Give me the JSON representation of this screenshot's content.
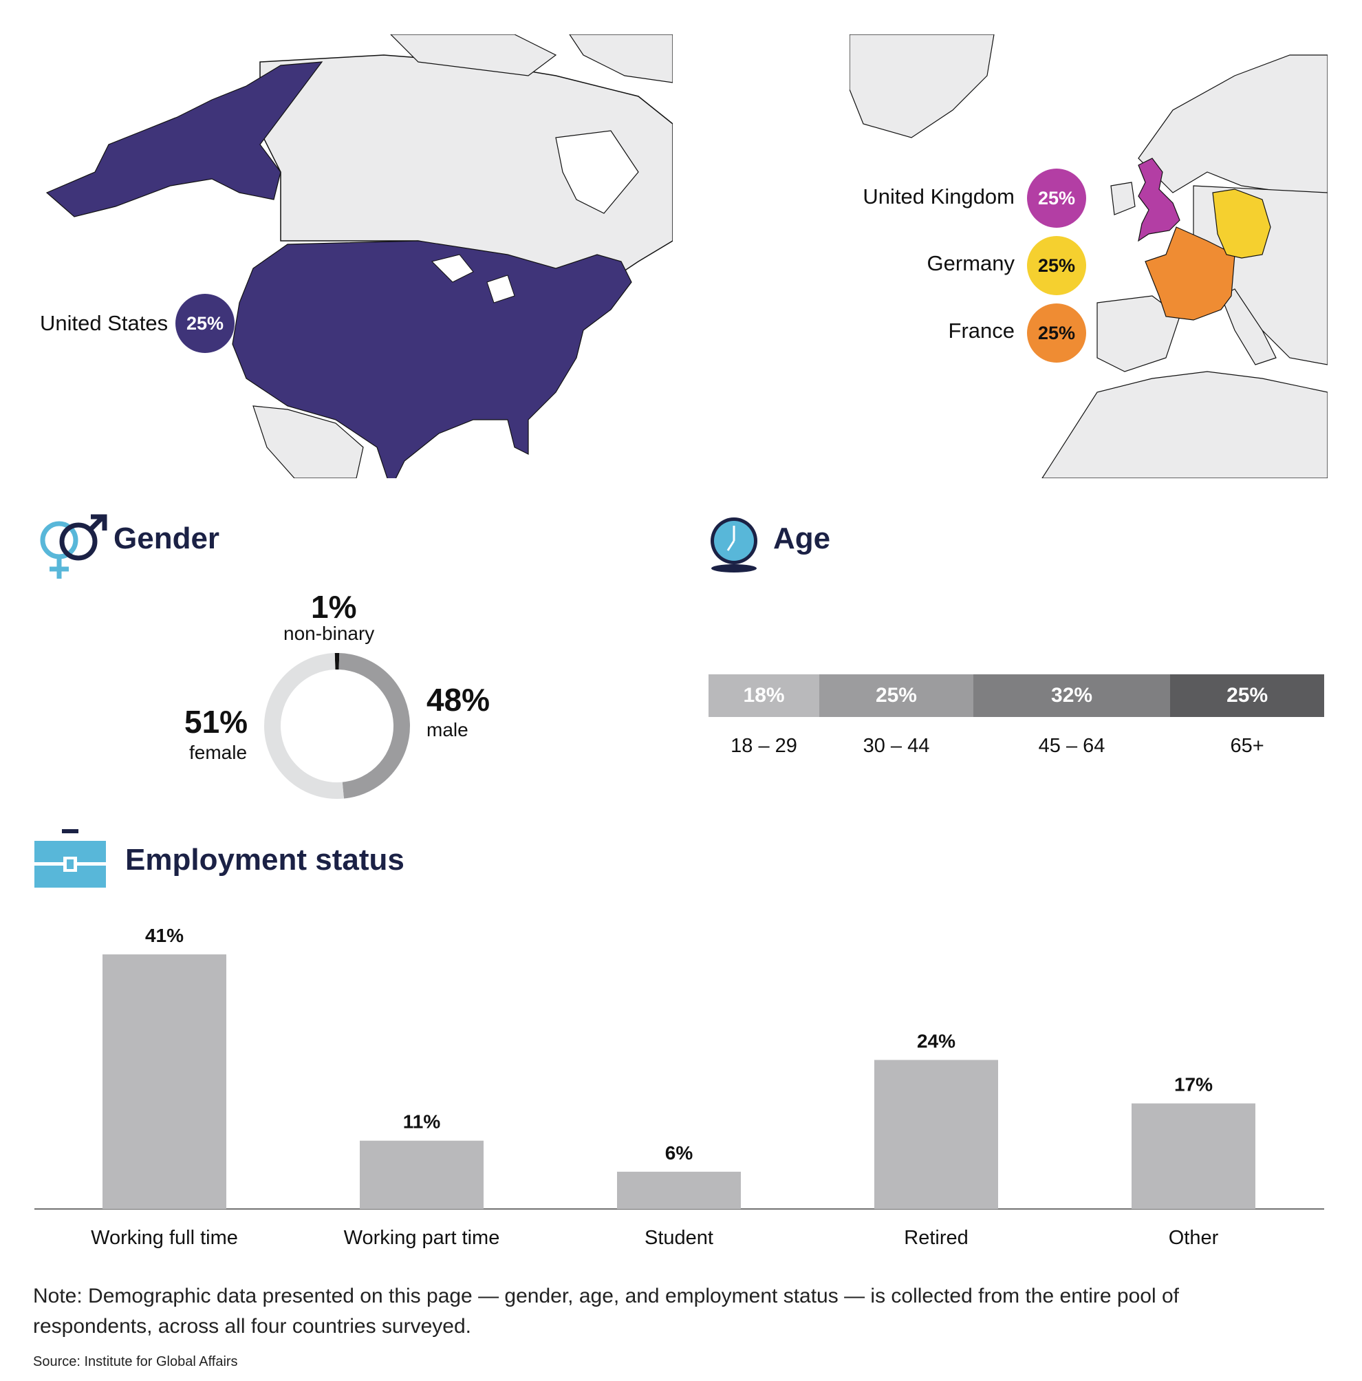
{
  "map": {
    "north_america": {
      "label": "United States",
      "pct": "25%",
      "color": "#3f3479"
    },
    "europe": [
      {
        "label": "United Kingdom",
        "pct": "25%",
        "color": "#b33ea4",
        "text_color": "#ffffff"
      },
      {
        "label": "Germany",
        "pct": "25%",
        "color": "#f5d02f",
        "text_color": "#111111"
      },
      {
        "label": "France",
        "pct": "25%",
        "color": "#ef8c33",
        "text_color": "#111111"
      }
    ],
    "land_color": "#ebebec"
  },
  "gender": {
    "title": "Gender",
    "icon": "gender-icon",
    "nonbinary": {
      "pct": "1%",
      "label": "non-binary"
    },
    "male": {
      "pct": "48%",
      "label": "male"
    },
    "female": {
      "pct": "51%",
      "label": "female"
    },
    "colors": {
      "male": "#9c9c9e",
      "female": "#e0e1e2",
      "nonbinary": "#111111"
    }
  },
  "age": {
    "title": "Age",
    "icon": "clock-icon"
  },
  "employment": {
    "title": "Employment status",
    "icon": "briefcase-icon"
  },
  "note": "Note: Demographic data presented on this page — gender, age, and employment status — is collected from the entire pool of respondents, across all four countries surveyed.",
  "source": "Source: Institute for Global Affairs",
  "chart_data": [
    {
      "type": "pie",
      "categories": [
        "female",
        "male",
        "non-binary"
      ],
      "values": [
        51,
        48,
        1
      ]
    },
    {
      "type": "bar",
      "categories": [
        "18 – 29",
        "30 – 44",
        "45 – 64",
        "65+"
      ],
      "values": [
        18,
        25,
        32,
        25
      ],
      "value_labels": [
        "18%",
        "25%",
        "32%",
        "25%"
      ],
      "colors": [
        "#b9b9bb",
        "#9c9c9e",
        "#7f7f81",
        "#5b5b5d"
      ]
    },
    {
      "type": "bar",
      "categories": [
        "Working full time",
        "Working part time",
        "Student",
        "Retired",
        "Other"
      ],
      "values": [
        41,
        11,
        6,
        24,
        17
      ],
      "value_labels": [
        "41%",
        "11%",
        "6%",
        "24%",
        "17%"
      ],
      "color": "#b9b9bb"
    }
  ]
}
